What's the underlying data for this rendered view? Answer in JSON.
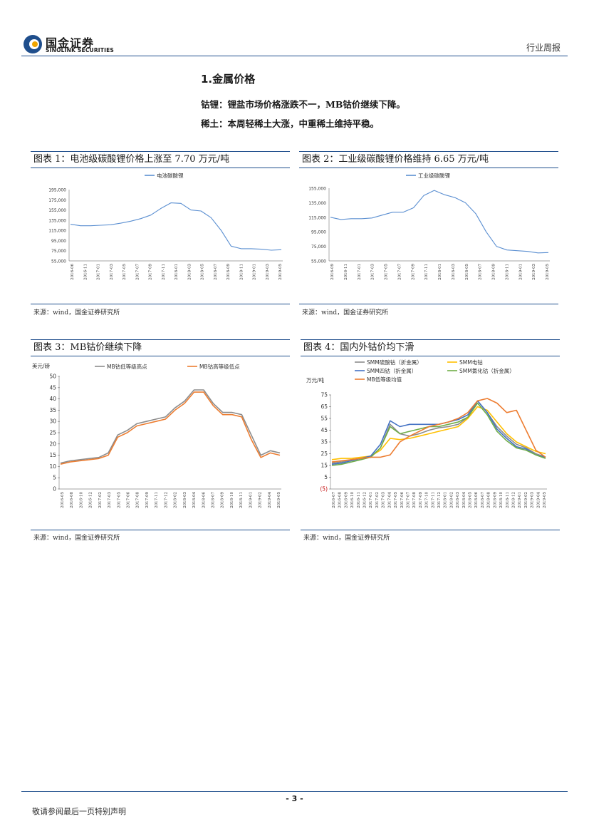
{
  "header": {
    "logo_cn": "国金证券",
    "logo_en": "SINOLINK SECURITIES",
    "report_type": "行业周报"
  },
  "section": {
    "title": "1.金属价格",
    "line1": "钴锂：锂盐市场价格涨跌不一，MB钴价继续下降。",
    "line2": "稀土：本周轻稀土大涨，中重稀土维持平稳。"
  },
  "source_text": "来源：wind，国金证券研究所",
  "footer": {
    "page": "- 3 -",
    "disclaimer": "敬请参阅最后一页特别声明"
  },
  "colors": {
    "brand_blue": "#1f4e8c",
    "series_blue": "#5b8fd1",
    "series_gray": "#8c8c8c",
    "series_orange": "#ed7d31",
    "series_yellow": "#ffc000",
    "series_navy": "#4472c4",
    "series_green": "#70ad47"
  },
  "chart_data": [
    {
      "id": "chart1",
      "type": "line",
      "title": "图表 1：电池级碳酸锂价格上涨至 7.70 万元/吨",
      "legend": [
        "电池碳酸锂"
      ],
      "ylim": [
        55000,
        195000
      ],
      "yticks": [
        "195,000",
        "175,000",
        "155,000",
        "135,000",
        "115,000",
        "95,000",
        "75,000",
        "55,000"
      ],
      "xticks": [
        "2016-06",
        "2016-11",
        "2017-01",
        "2017-03",
        "2017-05",
        "2017-07",
        "2017-09",
        "2017-11",
        "2018-01",
        "2018-03",
        "2018-05",
        "2018-07",
        "2018-09",
        "2018-11",
        "2019-01",
        "2019-03",
        "2019-05"
      ],
      "series": [
        {
          "name": "电池碳酸锂",
          "color": "#5b8fd1",
          "values": [
            127000,
            124000,
            124000,
            125000,
            126000,
            129000,
            133000,
            138000,
            145000,
            158000,
            169000,
            168000,
            155000,
            153000,
            140000,
            115000,
            84000,
            79000,
            79000,
            78000,
            76000,
            77000
          ]
        }
      ]
    },
    {
      "id": "chart2",
      "type": "line",
      "title": "图表 2：工业级碳酸锂价格维持 6.65 万元/吨",
      "legend": [
        "工业级碳酸锂"
      ],
      "ylim": [
        55000,
        155000
      ],
      "yticks": [
        "155,000",
        "135,000",
        "115,000",
        "95,000",
        "75,000",
        "55,000"
      ],
      "xticks": [
        "2016-09",
        "2016-11",
        "2017-01",
        "2017-03",
        "2017-05",
        "2017-07",
        "2017-09",
        "2017-11",
        "2018-01",
        "2018-03",
        "2018-05",
        "2018-07",
        "2018-09",
        "2018-11",
        "2019-01",
        "2019-03",
        "2019-05"
      ],
      "series": [
        {
          "name": "工业级碳酸锂",
          "color": "#5b8fd1",
          "values": [
            115000,
            112000,
            113000,
            113000,
            114000,
            118000,
            122000,
            122000,
            128000,
            145000,
            152000,
            146000,
            142000,
            135000,
            120000,
            95000,
            75000,
            70000,
            69000,
            68000,
            66000,
            66500
          ]
        }
      ]
    },
    {
      "id": "chart3",
      "type": "line",
      "title": "图表 3：MB钴价继续下降",
      "ylabel": "美元/磅",
      "legend": [
        "MB钴低等级高点",
        "MB钴高等级低点"
      ],
      "ylim": [
        0,
        50
      ],
      "yticks": [
        "50",
        "45",
        "40",
        "35",
        "30",
        "25",
        "20",
        "15",
        "10",
        "5",
        "0"
      ],
      "xticks": [
        "2016-05",
        "2016-08",
        "2016-10",
        "2016-12",
        "2017-02",
        "2017-03",
        "2017-05",
        "2017-06",
        "2017-08",
        "2017-09",
        "2017-11",
        "2017-12",
        "2018-02",
        "2018-03",
        "2018-04",
        "2018-06",
        "2018-07",
        "2018-09",
        "2018-10",
        "2018-11",
        "2019-01",
        "2019-02",
        "2019-04",
        "2019-05"
      ],
      "series": [
        {
          "name": "MB钴低等级高点",
          "color": "#8c8c8c",
          "values": [
            11.5,
            12.5,
            13,
            13.5,
            14,
            16,
            24,
            26,
            29,
            30,
            31,
            32,
            36,
            39,
            44,
            44,
            38,
            34,
            34,
            33,
            24,
            15,
            17,
            16
          ]
        },
        {
          "name": "MB钴高等级低点",
          "color": "#ed7d31",
          "values": [
            11,
            12,
            12.5,
            13,
            13.5,
            15,
            23,
            25,
            28,
            29,
            30,
            31,
            35,
            38,
            43,
            43,
            37,
            33,
            33,
            32,
            22,
            14,
            16,
            15
          ]
        }
      ]
    },
    {
      "id": "chart4",
      "type": "line",
      "title": "图表 4：国内外钴价均下滑",
      "ylabel": "万元/吨",
      "legend": [
        "SMM硫酸钴（折金属）",
        "SMM电钴",
        "SMM四钴（折金属）",
        "SMM氯化钴（折金属）",
        "MB低等级均值"
      ],
      "ylim": [
        -5,
        75
      ],
      "yticks": [
        "75",
        "65",
        "55",
        "45",
        "35",
        "25",
        "15",
        "5",
        "(5)"
      ],
      "xticks": [
        "2016-07",
        "2016-08",
        "2016-09",
        "2016-10",
        "2016-11",
        "2016-12",
        "2017-01",
        "2017-02",
        "2017-03",
        "2017-04",
        "2017-05",
        "2017-06",
        "2017-07",
        "2017-08",
        "2017-09",
        "2017-10",
        "2017-11",
        "2017-12",
        "2018-01",
        "2018-02",
        "2018-03",
        "2018-04",
        "2018-05",
        "2018-06",
        "2018-07",
        "2018-08",
        "2018-09",
        "2018-10",
        "2018-11",
        "2018-12",
        "2019-01",
        "2019-02",
        "2019-03",
        "2019-04",
        "2019-05"
      ],
      "series": [
        {
          "name": "SMM硫酸钴（折金属）",
          "color": "#8c8c8c",
          "values": [
            17,
            18,
            20,
            21,
            22,
            30,
            50,
            42,
            40,
            42,
            45,
            47,
            48,
            50,
            56,
            70,
            60,
            48,
            40,
            33,
            30,
            25,
            22
          ]
        },
        {
          "name": "SMM电钴",
          "color": "#ffc000",
          "values": [
            20,
            21,
            21,
            22,
            23,
            28,
            38,
            37,
            38,
            40,
            42,
            44,
            46,
            48,
            55,
            65,
            62,
            52,
            42,
            35,
            31,
            27,
            25
          ]
        },
        {
          "name": "SMM四钴（折金属）",
          "color": "#4472c4",
          "values": [
            16,
            17,
            19,
            21,
            23,
            33,
            53,
            48,
            50,
            50,
            50,
            50,
            52,
            54,
            58,
            70,
            60,
            46,
            38,
            31,
            29,
            24,
            22
          ]
        },
        {
          "name": "SMM氯化钴（折金属）",
          "color": "#70ad47",
          "values": [
            15,
            16,
            18,
            20,
            22,
            30,
            48,
            42,
            44,
            46,
            48,
            48,
            50,
            52,
            56,
            68,
            58,
            44,
            36,
            30,
            28,
            24,
            21
          ]
        },
        {
          "name": "MB低等级均值",
          "color": "#ed7d31",
          "values": [
            18,
            19,
            20,
            21,
            22,
            22,
            24,
            35,
            40,
            44,
            48,
            50,
            52,
            55,
            60,
            70,
            72,
            68,
            60,
            62,
            45,
            28,
            22
          ]
        }
      ]
    }
  ]
}
